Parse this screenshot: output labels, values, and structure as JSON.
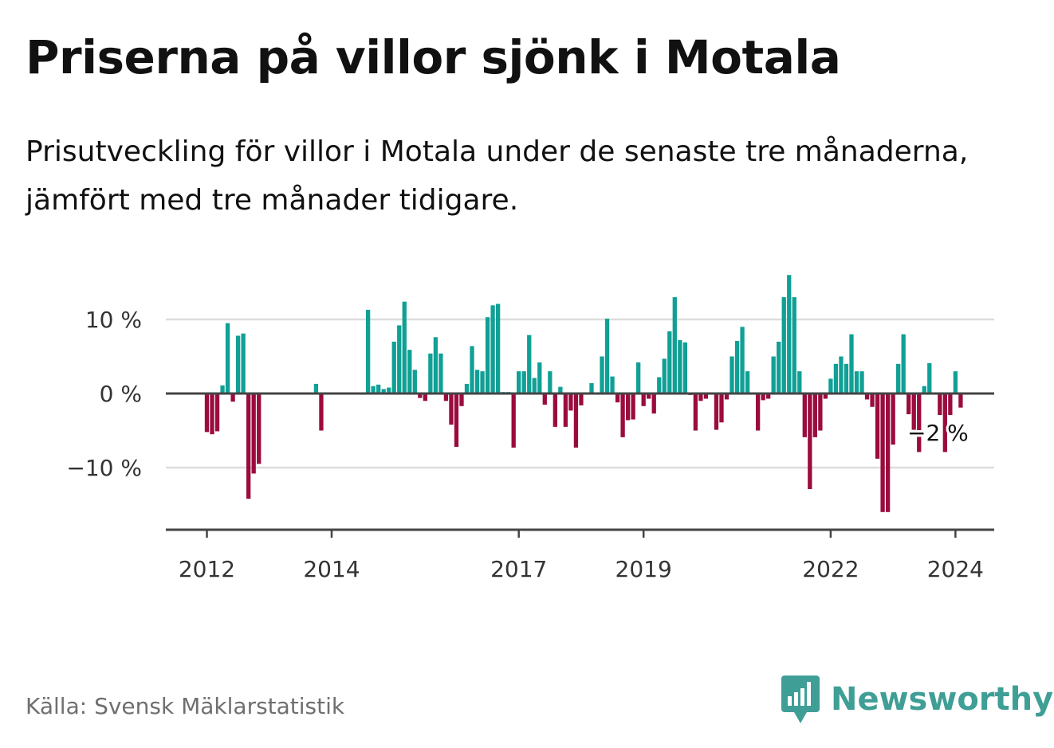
{
  "title": "Priserna på villor sjönk i Motala",
  "subtitle": "Prisutveckling för villor i Motala under de senaste tre månaderna, jämfört med tre månader tidigare.",
  "source": "Källa: Svensk Mäklarstatistik",
  "brand": "Newsworthy",
  "colors": {
    "positive": "#10a095",
    "negative": "#9b0b3e",
    "brand": "#3f9e95",
    "axis": "#444444",
    "grid": "#dddddd"
  },
  "chart_data": {
    "type": "bar",
    "title": "Priserna på villor sjönk i Motala",
    "xlabel": "",
    "ylabel": "",
    "ylim": [
      -18.5,
      16.5
    ],
    "y_ticks": [
      {
        "value": 10,
        "label": "10 %"
      },
      {
        "value": 0,
        "label": "0 %"
      },
      {
        "value": -10,
        "label": "−10 %"
      }
    ],
    "x_ticks": [
      {
        "index": 0,
        "label": "2012"
      },
      {
        "index": 24,
        "label": "2014"
      },
      {
        "index": 60,
        "label": "2017"
      },
      {
        "index": 84,
        "label": "2019"
      },
      {
        "index": 120,
        "label": "2022"
      },
      {
        "index": 144,
        "label": "2024"
      }
    ],
    "annotation": {
      "index": 144,
      "label": "−2 %"
    },
    "series": [
      {
        "name": "Prisutveckling",
        "start": "2012-01",
        "values": [
          -5.2,
          -5.5,
          -5.1,
          1.1,
          9.5,
          -1.1,
          7.8,
          8.1,
          -14.2,
          -10.8,
          -9.5,
          0,
          0,
          0,
          0,
          0,
          0,
          0,
          0,
          0,
          0,
          1.3,
          -5.0,
          0,
          0,
          0,
          0,
          0,
          0,
          0,
          0,
          11.3,
          1.0,
          1.2,
          0.6,
          0.8,
          7.0,
          9.2,
          12.4,
          5.9,
          3.2,
          -0.6,
          -1.0,
          5.4,
          7.6,
          5.4,
          -1.0,
          -4.2,
          -7.2,
          -1.7,
          1.3,
          6.4,
          3.2,
          3.0,
          10.3,
          11.9,
          12.1,
          0.2,
          0.2,
          -7.3,
          3.0,
          3.0,
          7.9,
          2.1,
          4.2,
          -1.5,
          3.0,
          -4.5,
          0.9,
          -4.5,
          -2.3,
          -7.3,
          -1.6,
          0,
          1.4,
          0,
          5.0,
          10.1,
          2.3,
          -1.2,
          -5.9,
          -3.6,
          -3.5,
          4.2,
          -1.7,
          -0.7,
          -2.7,
          2.2,
          4.7,
          8.4,
          13.0,
          7.2,
          6.9,
          -0.2,
          -5.0,
          -1.0,
          -0.7,
          0,
          -4.9,
          -3.9,
          -0.8,
          5.0,
          7.1,
          9.0,
          3.0,
          0,
          -5.0,
          -0.9,
          -0.7,
          5.0,
          7.0,
          13.0,
          16.0,
          13.0,
          3.0,
          -5.9,
          -12.9,
          -5.9,
          -5.0,
          -0.7,
          2.0,
          4.0,
          5.0,
          4.0,
          8.0,
          3.0,
          3.0,
          -0.8,
          -1.8,
          -8.8,
          -16.0,
          -16.0,
          -6.9,
          4.0,
          8.0,
          -2.8,
          -4.9,
          -7.9,
          1.0,
          4.1,
          0,
          -2.9,
          -7.9,
          -2.9,
          3.0,
          -1.9
        ]
      }
    ]
  }
}
